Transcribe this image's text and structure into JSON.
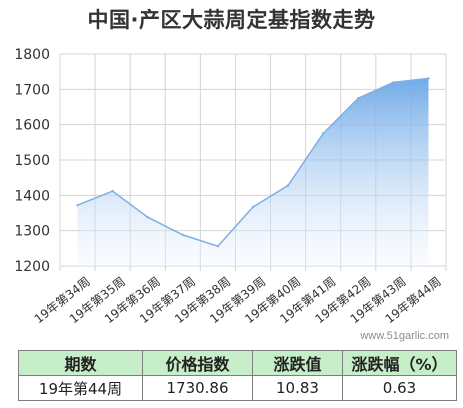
{
  "title": "中国·产区大蒜周定基指数走势",
  "watermark": "www.51garlic.com",
  "colors": {
    "line": "#7fb0e2",
    "fill_top": "#6aa6e6",
    "grid": "#d4d4d4"
  },
  "chart_data": {
    "type": "area",
    "title": "中国·产区大蒜周定基指数走势",
    "categories": [
      "19年第34周",
      "19年第35周",
      "19年第36周",
      "19年第37周",
      "19年第38周",
      "19年第39周",
      "19年第40周",
      "19年第41周",
      "19年第42周",
      "19年第43周",
      "19年第44周"
    ],
    "values": [
      1372,
      1412,
      1338,
      1288,
      1256,
      1367,
      1428,
      1575,
      1675,
      1720,
      1731
    ],
    "ylim": [
      1200,
      1800
    ],
    "yticks": [
      1200,
      1300,
      1400,
      1500,
      1600,
      1700,
      1800
    ],
    "grid": true,
    "xlabel": "",
    "ylabel": ""
  },
  "table": {
    "headers": [
      "期数",
      "价格指数",
      "涨跌值",
      "涨跌幅（%）"
    ],
    "row": [
      "19年第44周",
      "1730.86",
      "10.83",
      "0.63"
    ]
  }
}
